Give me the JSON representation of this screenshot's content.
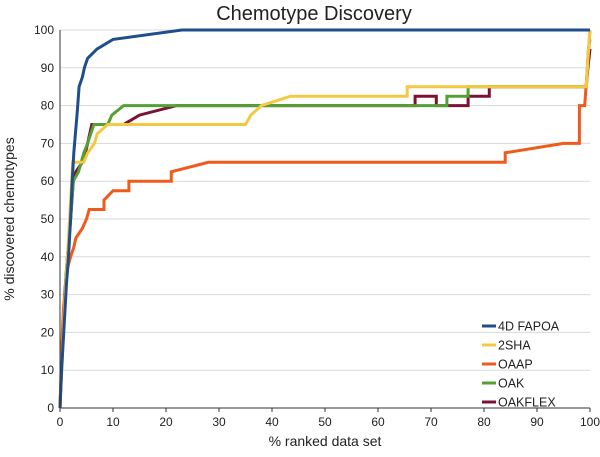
{
  "chart_data": {
    "type": "line",
    "title": "Chemotype Discovery",
    "xlabel": "% ranked data set",
    "ylabel": "% discovered chemotypes",
    "xlim": [
      0,
      100
    ],
    "ylim": [
      0,
      100
    ],
    "x_ticks": [
      0,
      10,
      20,
      30,
      40,
      50,
      60,
      70,
      80,
      90,
      100
    ],
    "y_ticks": [
      0,
      10,
      20,
      30,
      40,
      50,
      60,
      70,
      80,
      90,
      100
    ],
    "grid": "horizontal",
    "legend_position": "bottom-right",
    "series": [
      {
        "name": "4D FAPOA",
        "color": "#1f4e8c",
        "points": [
          [
            0,
            0
          ],
          [
            0.3,
            10
          ],
          [
            0.6,
            17.5
          ],
          [
            0.9,
            25
          ],
          [
            1.2,
            32.5
          ],
          [
            1.6,
            40
          ],
          [
            2.0,
            50
          ],
          [
            2.3,
            60
          ],
          [
            2.6,
            67.5
          ],
          [
            2.9,
            72.5
          ],
          [
            3.2,
            77.5
          ],
          [
            3.6,
            85
          ],
          [
            4.2,
            87.5
          ],
          [
            4.6,
            90
          ],
          [
            5.2,
            92.5
          ],
          [
            7.0,
            95
          ],
          [
            10.0,
            97.5
          ],
          [
            23.0,
            100
          ],
          [
            100,
            100
          ]
        ]
      },
      {
        "name": "2SHA",
        "color": "#f5c842",
        "points": [
          [
            0,
            0
          ],
          [
            0.4,
            12
          ],
          [
            0.8,
            25
          ],
          [
            1.2,
            35
          ],
          [
            1.6,
            45
          ],
          [
            2.0,
            55
          ],
          [
            2.4,
            65
          ],
          [
            4.5,
            65
          ],
          [
            5.2,
            67.5
          ],
          [
            6.5,
            70
          ],
          [
            7.0,
            72.5
          ],
          [
            9.0,
            75
          ],
          [
            35.0,
            75
          ],
          [
            36.0,
            77.5
          ],
          [
            38.0,
            80
          ],
          [
            43.5,
            82.5
          ],
          [
            65.5,
            82.5
          ],
          [
            65.5,
            85
          ],
          [
            99.3,
            85
          ],
          [
            99.6,
            92.5
          ],
          [
            100,
            100
          ]
        ]
      },
      {
        "name": "OAAP",
        "color": "#f05a1a",
        "points": [
          [
            0,
            0
          ],
          [
            0.3,
            15
          ],
          [
            0.6,
            25
          ],
          [
            1.0,
            32.5
          ],
          [
            1.5,
            37.5
          ],
          [
            2.0,
            40
          ],
          [
            2.6,
            42.5
          ],
          [
            3.0,
            45
          ],
          [
            4.2,
            47.5
          ],
          [
            5.0,
            50
          ],
          [
            5.5,
            52.5
          ],
          [
            8.3,
            52.5
          ],
          [
            8.3,
            55
          ],
          [
            10.0,
            57.5
          ],
          [
            13.0,
            57.5
          ],
          [
            13.0,
            60
          ],
          [
            21.0,
            60
          ],
          [
            21.0,
            62.5
          ],
          [
            28.0,
            65
          ],
          [
            84.0,
            65
          ],
          [
            84.0,
            67.5
          ],
          [
            95.0,
            70
          ],
          [
            98.0,
            70
          ],
          [
            98.0,
            80
          ],
          [
            99.0,
            80
          ],
          [
            99.5,
            90
          ],
          [
            100,
            100
          ]
        ]
      },
      {
        "name": "OAK",
        "color": "#55a032",
        "points": [
          [
            0,
            0
          ],
          [
            0.4,
            15
          ],
          [
            0.9,
            30
          ],
          [
            1.4,
            40
          ],
          [
            2.0,
            50
          ],
          [
            2.5,
            60
          ],
          [
            3.5,
            62.5
          ],
          [
            4.0,
            65
          ],
          [
            4.5,
            67.5
          ],
          [
            5.2,
            70
          ],
          [
            5.8,
            72.5
          ],
          [
            6.4,
            75
          ],
          [
            9.0,
            75
          ],
          [
            9.8,
            77.5
          ],
          [
            12.0,
            80
          ],
          [
            73.0,
            80
          ],
          [
            73.0,
            82.5
          ],
          [
            77.0,
            82.5
          ],
          [
            77.0,
            85
          ],
          [
            99.3,
            85
          ],
          [
            99.7,
            95
          ],
          [
            100,
            97.5
          ]
        ]
      },
      {
        "name": "OAKFLEX",
        "color": "#7b1232",
        "points": [
          [
            0,
            0
          ],
          [
            0.4,
            15
          ],
          [
            0.9,
            30
          ],
          [
            1.4,
            40
          ],
          [
            2.0,
            50
          ],
          [
            2.5,
            60
          ],
          [
            3.0,
            62.5
          ],
          [
            4.2,
            65
          ],
          [
            4.8,
            67.5
          ],
          [
            5.2,
            70
          ],
          [
            5.6,
            72.5
          ],
          [
            6.0,
            75
          ],
          [
            12.0,
            75
          ],
          [
            15.0,
            77.5
          ],
          [
            22.0,
            80
          ],
          [
            67.0,
            80
          ],
          [
            67.0,
            82.5
          ],
          [
            71.0,
            82.5
          ],
          [
            71.0,
            80
          ],
          [
            77.0,
            80
          ],
          [
            77.0,
            82.5
          ],
          [
            81.0,
            82.5
          ],
          [
            81.0,
            85
          ],
          [
            99.3,
            85
          ],
          [
            99.6,
            90
          ],
          [
            100,
            95
          ]
        ]
      }
    ]
  }
}
